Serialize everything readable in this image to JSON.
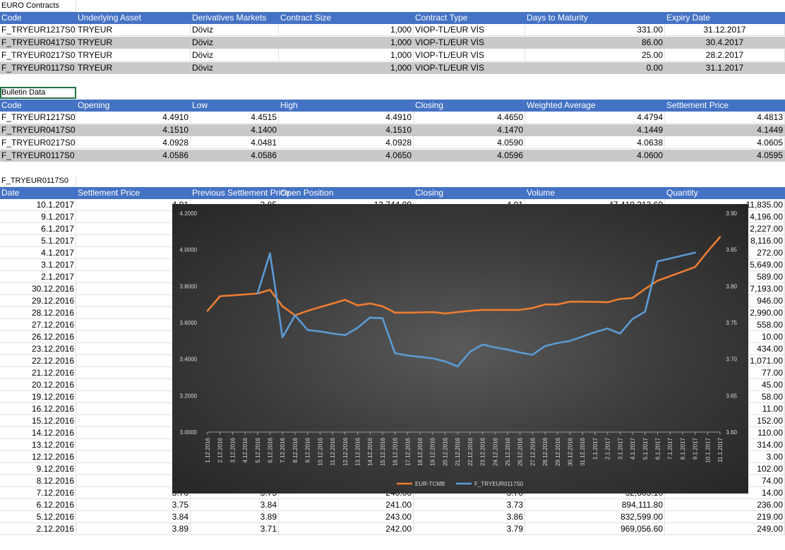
{
  "euro_section": {
    "title": "EURO Contracts",
    "headers": [
      "Code",
      "Underlying Asset",
      "Derivatives Markets",
      "Contract Size",
      "",
      "Contract Type",
      "Days to Maturity",
      "",
      "Expiry Date"
    ],
    "rows": [
      [
        "F_TRYEUR1217S0",
        "TRYEUR",
        "Döviz",
        "",
        "1,000",
        "VIOP-TL/EUR VİS",
        "",
        "331.00",
        "31.12.2017"
      ],
      [
        "F_TRYEUR0417S0",
        "TRYEUR",
        "Döviz",
        "",
        "1,000",
        "VIOP-TL/EUR VİS",
        "",
        "86.00",
        "30.4.2017"
      ],
      [
        "F_TRYEUR0217S0",
        "TRYEUR",
        "Döviz",
        "",
        "1,000",
        "VIOP-TL/EUR VİS",
        "",
        "25.00",
        "28.2.2017"
      ],
      [
        "F_TRYEUR0117S0",
        "TRYEUR",
        "Döviz",
        "",
        "1,000",
        "VIOP-TL/EUR VİS",
        "",
        "0.00",
        "31.1.2017"
      ]
    ]
  },
  "bulletin_section": {
    "title": "Bulletin Data",
    "headers": [
      "Code",
      "Opening",
      "Low",
      "High",
      "",
      "Closing",
      "Weighted Average",
      "",
      "Settlement Price"
    ],
    "rows": [
      [
        "F_TRYEUR1217S0",
        "4.4910",
        "4.4515",
        "",
        "4.4910",
        "4.4650",
        "",
        "4.4794",
        "4.4813"
      ],
      [
        "F_TRYEUR0417S0",
        "4.1510",
        "4.1400",
        "",
        "4.1510",
        "4.1470",
        "",
        "4.1449",
        "4.1449"
      ],
      [
        "F_TRYEUR0217S0",
        "4.0928",
        "4.0481",
        "",
        "4.0928",
        "4.0590",
        "",
        "4.0638",
        "4.0605"
      ],
      [
        "F_TRYEUR0117S0",
        "4.0586",
        "4.0586",
        "",
        "4.0650",
        "4.0596",
        "",
        "4.0600",
        "4.0595"
      ]
    ]
  },
  "history_section": {
    "title": "F_TRYEUR0117S0",
    "headers": [
      "Date",
      "Settlement Price",
      "Previous Settlement Price",
      "Open Position",
      "",
      "Closing",
      "Volume",
      "",
      "Quantity"
    ],
    "rows": [
      [
        "10.1.2017",
        "",
        "4.01",
        "3.85",
        "13,744.00",
        "",
        "4.01",
        "47,410,313.60",
        "11,835.00"
      ],
      [
        "9.1.2017",
        "",
        "",
        "",
        "",
        "",
        "",
        "",
        "4,196.00"
      ],
      [
        "6.1.2017",
        "",
        "",
        "",
        "",
        "",
        "",
        "",
        "2,227.00"
      ],
      [
        "5.1.2017",
        "",
        "",
        "",
        "",
        "",
        "",
        "",
        "8,116.00"
      ],
      [
        "4.1.2017",
        "",
        "",
        "",
        "",
        "",
        "",
        "",
        "272.00"
      ],
      [
        "3.1.2017",
        "",
        "",
        "",
        "",
        "",
        "",
        "",
        "5,649.00"
      ],
      [
        "2.1.2017",
        "",
        "",
        "",
        "",
        "",
        "",
        "",
        "589.00"
      ],
      [
        "30.12.2016",
        "",
        "",
        "",
        "",
        "",
        "",
        "",
        "7,193.00"
      ],
      [
        "29.12.2016",
        "",
        "",
        "",
        "",
        "",
        "",
        "",
        "946.00"
      ],
      [
        "28.12.2016",
        "",
        "",
        "",
        "",
        "",
        "",
        "",
        "2,990.00"
      ],
      [
        "27.12.2016",
        "",
        "",
        "",
        "",
        "",
        "",
        "",
        "558.00"
      ],
      [
        "26.12.2016",
        "",
        "",
        "",
        "",
        "",
        "",
        "",
        "10.00"
      ],
      [
        "23.12.2016",
        "",
        "",
        "",
        "",
        "",
        "",
        "",
        "434.00"
      ],
      [
        "22.12.2016",
        "",
        "",
        "",
        "",
        "",
        "",
        "",
        "1,071.00"
      ],
      [
        "21.12.2016",
        "",
        "",
        "",
        "",
        "",
        "",
        "",
        "77.00"
      ],
      [
        "20.12.2016",
        "",
        "",
        "",
        "",
        "",
        "",
        "",
        "45.00"
      ],
      [
        "19.12.2016",
        "",
        "",
        "",
        "",
        "",
        "",
        "",
        "58.00"
      ],
      [
        "16.12.2016",
        "",
        "",
        "",
        "",
        "",
        "",
        "",
        "11.00"
      ],
      [
        "15.12.2016",
        "",
        "",
        "",
        "",
        "",
        "",
        "",
        "152.00"
      ],
      [
        "14.12.2016",
        "",
        "",
        "",
        "",
        "",
        "",
        "",
        "110.00"
      ],
      [
        "13.12.2016",
        "",
        "",
        "",
        "",
        "",
        "",
        "",
        "314.00"
      ],
      [
        "12.12.2016",
        "",
        "",
        "",
        "",
        "",
        "",
        "",
        "3.00"
      ],
      [
        "9.12.2016",
        "",
        "",
        "",
        "",
        "",
        "",
        "",
        "102.00"
      ],
      [
        "8.12.2016",
        "",
        "",
        "",
        "",
        "",
        "",
        "",
        "74.00"
      ],
      [
        "7.12.2016",
        "",
        "3.70",
        "3.75",
        "240.00",
        "",
        "3.70",
        "32,605.10",
        "14.00"
      ],
      [
        "6.12.2016",
        "",
        "3.75",
        "3.84",
        "241.00",
        "",
        "3.73",
        "894,111.80",
        "236.00"
      ],
      [
        "5.12.2016",
        "",
        "3.84",
        "3.89",
        "243.00",
        "",
        "3.86",
        "832,599.00",
        "219.00"
      ],
      [
        "2.12.2016",
        "",
        "3.89",
        "3.71",
        "242.00",
        "",
        "3.79",
        "969,056.60",
        "249.00"
      ]
    ]
  },
  "chart_data": {
    "type": "line",
    "title": "",
    "x": [
      "1.12.2016",
      "2.12.2016",
      "3.12.2016",
      "4.12.2016",
      "5.12.2016",
      "6.12.2016",
      "7.12.2016",
      "8.12.2016",
      "9.12.2016",
      "10.12.2016",
      "11.12.2016",
      "12.12.2016",
      "13.12.2016",
      "14.12.2016",
      "15.12.2016",
      "16.12.2016",
      "17.12.2016",
      "18.12.2016",
      "19.12.2016",
      "20.12.2016",
      "21.12.2016",
      "22.12.2016",
      "23.12.2016",
      "24.12.2016",
      "25.12.2016",
      "26.12.2016",
      "27.12.2016",
      "28.12.2016",
      "29.12.2016",
      "30.12.2016",
      "31.12.2016",
      "1.1.2017",
      "2.1.2017",
      "3.1.2017",
      "4.1.2017",
      "5.1.2017",
      "6.1.2017",
      "7.1.2017",
      "8.1.2017",
      "9.1.2017",
      "10.1.2017",
      "11.1.2017"
    ],
    "y_left": {
      "min": 3.0,
      "max": 4.2,
      "step": 0.2,
      "tick_labels": [
        "3.0000",
        "3.2000",
        "3.4000",
        "3.6000",
        "3.8000",
        "4.0000",
        "4.2000"
      ]
    },
    "y_right": {
      "min": 3.6,
      "max": 3.9,
      "step": 0.05,
      "tick_labels": [
        "3.60",
        "3.65",
        "3.70",
        "3.75",
        "3.80",
        "3.85",
        "3.90"
      ]
    },
    "series": [
      {
        "name": "EUR-TCMB",
        "axis": "left",
        "color": "#ed7d31",
        "values": [
          3.665,
          3.745,
          3.75,
          3.755,
          3.76,
          3.78,
          3.69,
          3.64,
          3.665,
          3.685,
          3.705,
          3.725,
          3.695,
          3.705,
          3.69,
          3.655,
          3.655,
          3.656,
          3.658,
          3.65,
          3.658,
          3.665,
          3.67,
          3.67,
          3.67,
          3.67,
          3.68,
          3.7,
          3.7,
          3.715,
          3.715,
          3.714,
          3.712,
          3.73,
          3.735,
          3.785,
          3.83,
          3.855,
          3.88,
          3.905,
          3.99,
          4.07
        ]
      },
      {
        "name": "F_TRYEUR0117S0",
        "axis": "right",
        "color": "#5b9bd5",
        "values": [
          null,
          null,
          null,
          null,
          3.79,
          3.845,
          3.73,
          3.76,
          3.74,
          3.738,
          3.735,
          3.733,
          3.743,
          3.757,
          3.756,
          3.708,
          3.705,
          3.703,
          3.701,
          3.697,
          3.69,
          3.71,
          3.72,
          3.716,
          3.713,
          3.709,
          3.706,
          3.718,
          3.722,
          3.725,
          3.731,
          3.737,
          3.742,
          3.735,
          3.755,
          3.765,
          3.834,
          3.838,
          3.842,
          3.846,
          null,
          null
        ]
      }
    ],
    "legend": "bottom"
  }
}
